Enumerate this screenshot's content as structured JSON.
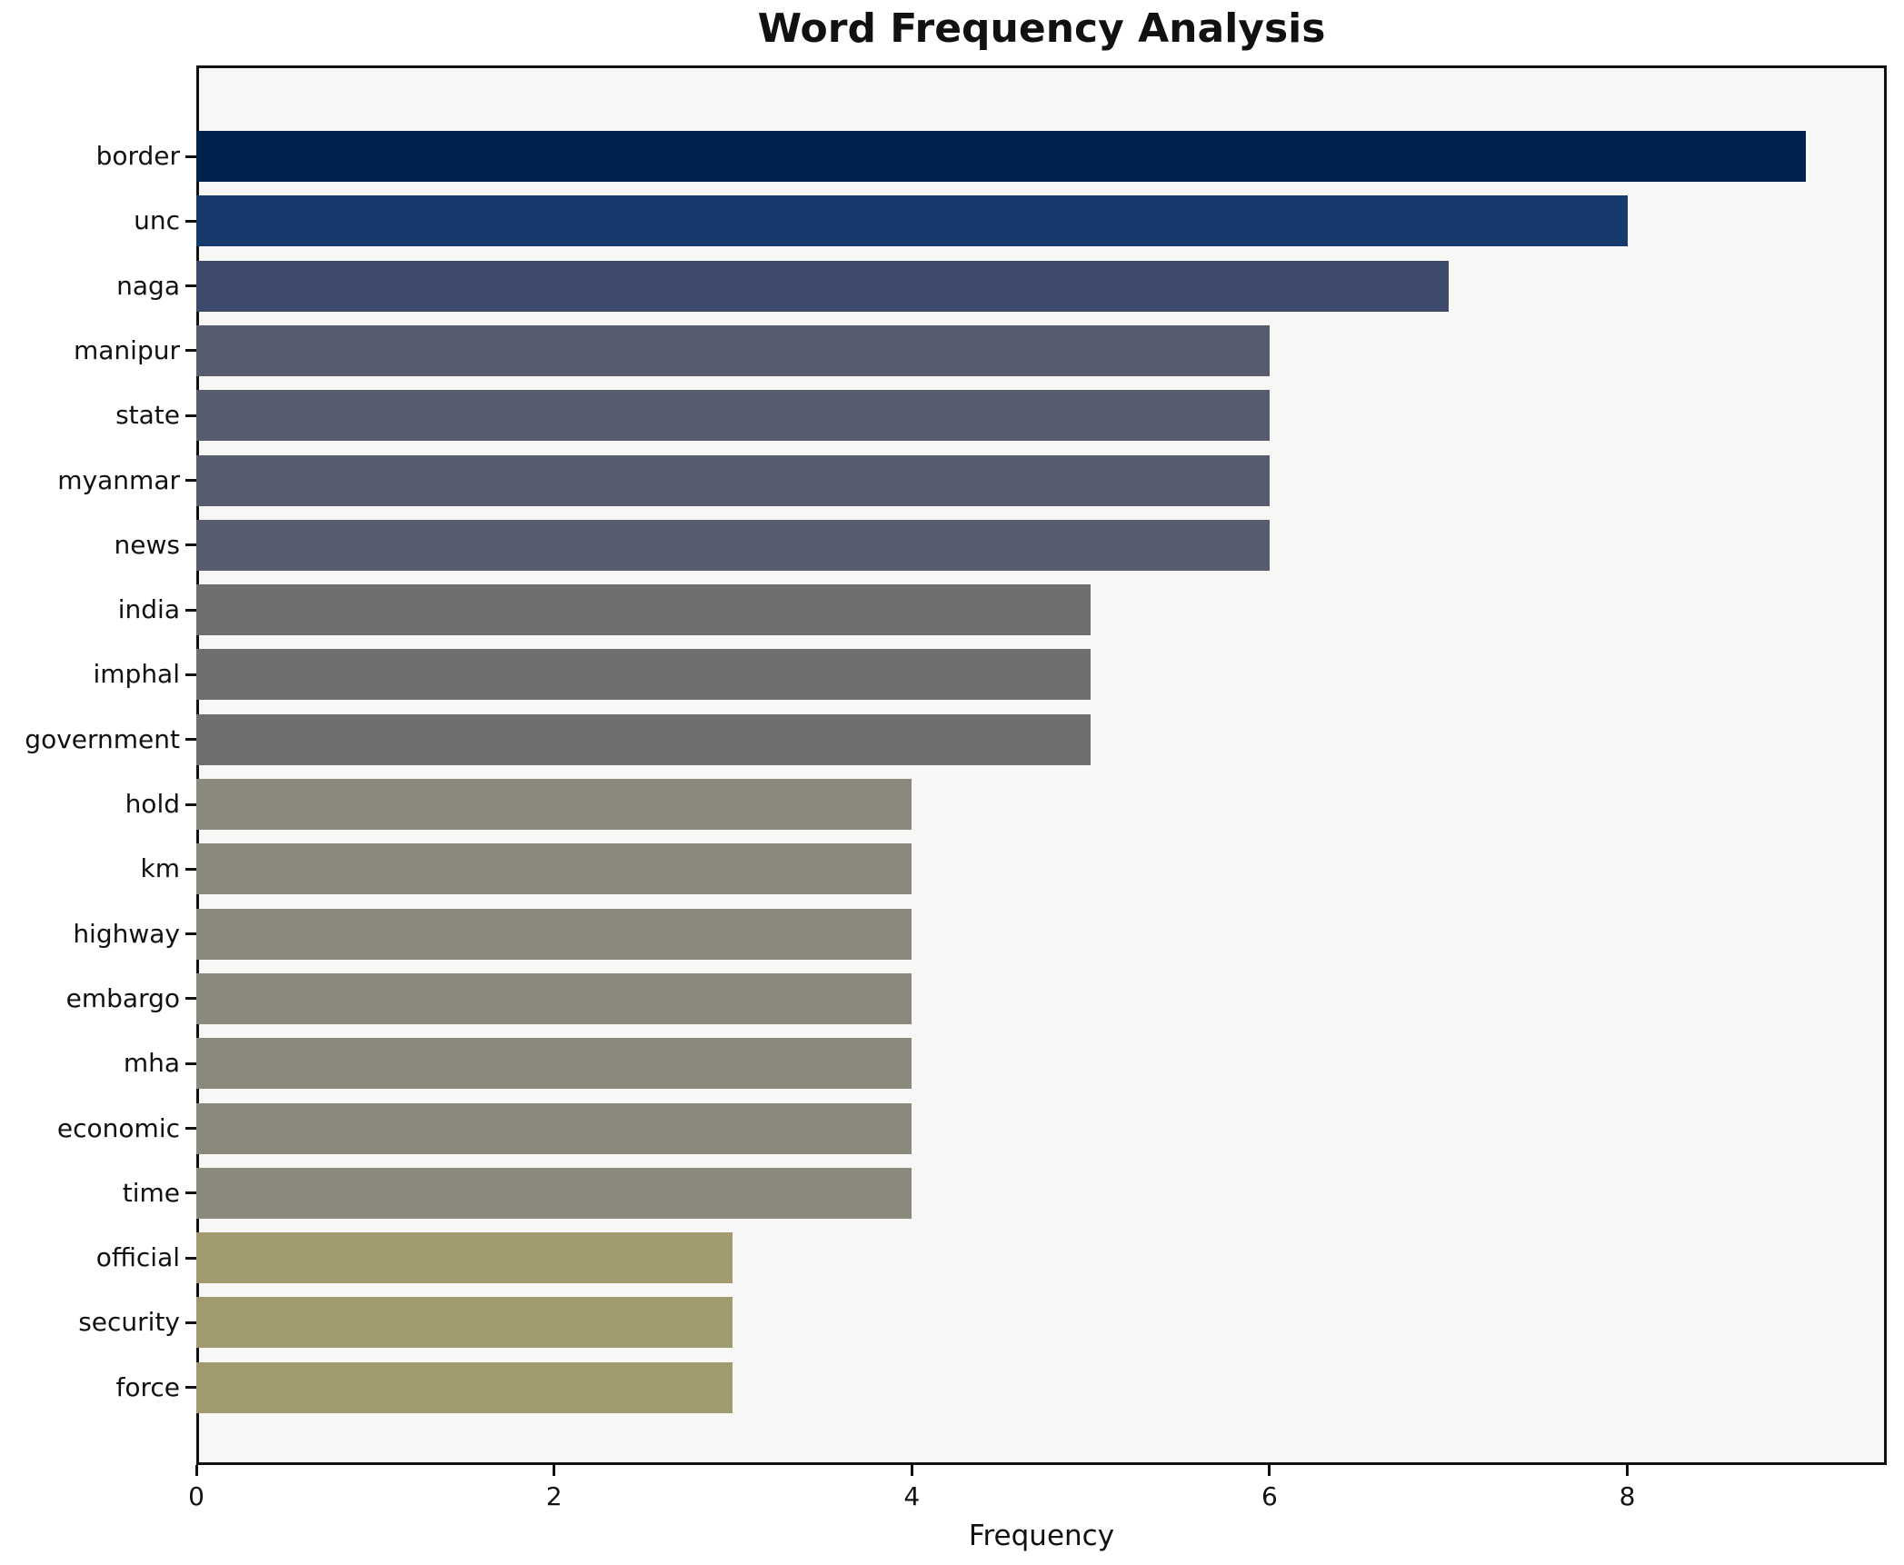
{
  "chart_data": {
    "type": "bar",
    "orientation": "horizontal",
    "title": "Word Frequency Analysis",
    "xlabel": "Frequency",
    "categories": [
      "border",
      "unc",
      "naga",
      "manipur",
      "state",
      "myanmar",
      "news",
      "india",
      "imphal",
      "government",
      "hold",
      "km",
      "highway",
      "embargo",
      "mha",
      "economic",
      "time",
      "official",
      "security",
      "force"
    ],
    "values": [
      9,
      8,
      7,
      6,
      6,
      6,
      6,
      5,
      5,
      5,
      4,
      4,
      4,
      4,
      4,
      4,
      4,
      3,
      3,
      3
    ],
    "xlim": [
      0,
      9.45
    ],
    "xticks": [
      0,
      2,
      4,
      6,
      8
    ],
    "grid": false,
    "legend_position": "none",
    "bar_colors_by_value": {
      "9": "#00234d",
      "8": "#173a6d",
      "7": "#3d4a6b",
      "6": "#575d6e",
      "5": "#6e6f71",
      "4": "#8a897b",
      "3": "#a29a6f"
    },
    "plot_background": "#f7f7f5",
    "figure_background": "#ffffff",
    "spine_color": "#111111",
    "text_color": "#111111"
  }
}
